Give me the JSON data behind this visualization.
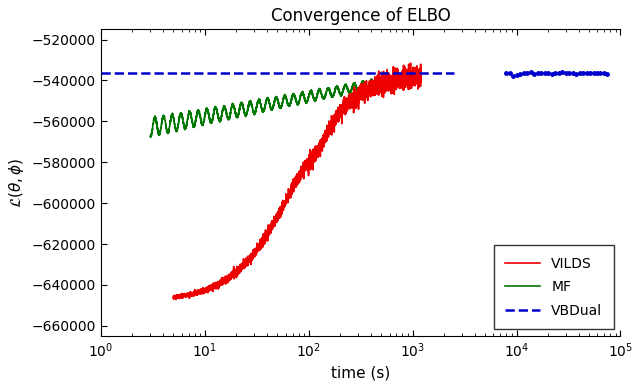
{
  "title": "Convergence of ELBO",
  "xlabel": "time (s)",
  "ylabel": "$\\mathcal{L}(\\theta, \\phi)$",
  "xlim": [
    1,
    100000
  ],
  "ylim": [
    -665000,
    -515000
  ],
  "yticks": [
    -660000,
    -640000,
    -620000,
    -600000,
    -580000,
    -560000,
    -540000,
    -520000
  ],
  "vbdual_level": -536500,
  "colors": {
    "VILDS": "#ee0000",
    "MF": "#007700",
    "VBDual": "#0000cc"
  },
  "legend_loc": "lower right",
  "background": "#ffffff",
  "figsize": [
    6.4,
    3.87
  ],
  "dpi": 100
}
